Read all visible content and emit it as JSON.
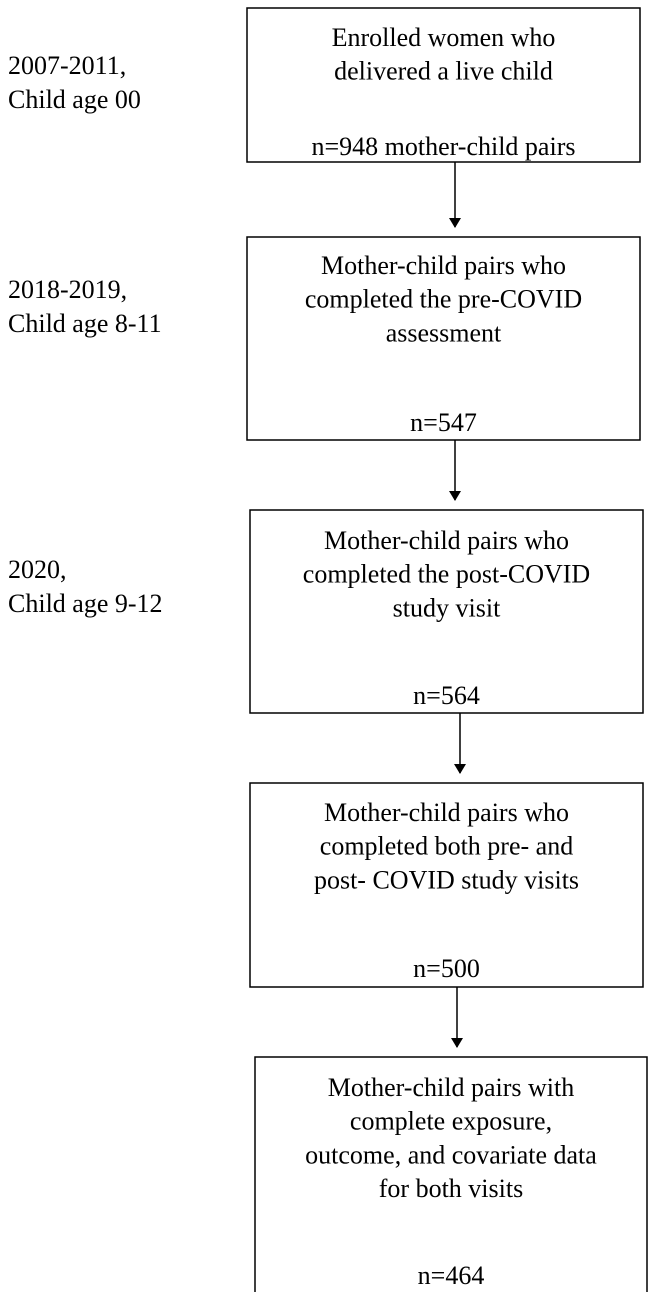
{
  "stages": [
    {
      "period": [
        "2007-2011,",
        "Child age 00"
      ],
      "lines": [
        "Enrolled women who",
        "delivered a live child"
      ],
      "count": "n=948 mother-child pairs"
    },
    {
      "period": [
        "2018-2019,",
        "Child age 8-11"
      ],
      "lines": [
        "Mother-child pairs who",
        "completed the pre-COVID",
        "assessment"
      ],
      "count": "n=547"
    },
    {
      "period": [
        "2020,",
        "Child age 9-12"
      ],
      "lines": [
        "Mother-child pairs who",
        "completed the post-COVID",
        "study visit"
      ],
      "count": "n=564"
    },
    {
      "lines": [
        "Mother-child pairs who",
        "completed both pre- and",
        "post- COVID study visits"
      ],
      "count": "n=500"
    },
    {
      "lines": [
        "Mother-child pairs with",
        "complete exposure,",
        "outcome, and covariate data",
        "for both visits"
      ],
      "count": "n=464"
    }
  ]
}
